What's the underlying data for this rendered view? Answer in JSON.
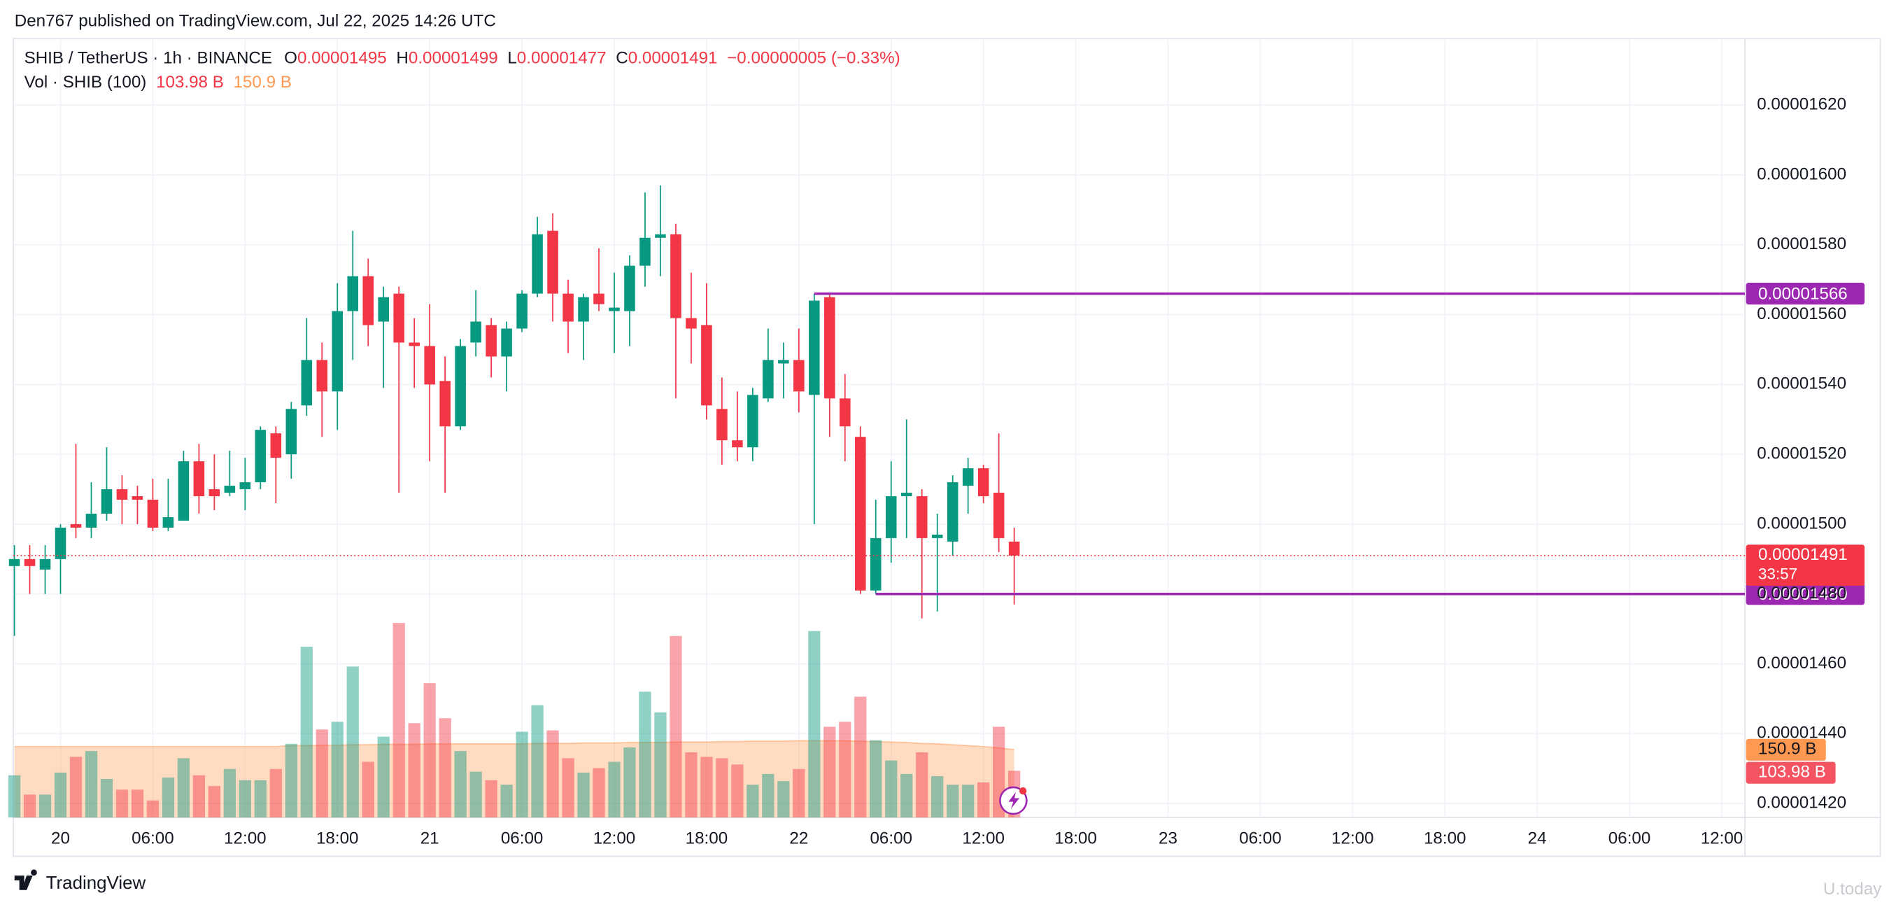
{
  "chart_data": {
    "type": "candlestick",
    "published": "Den767 published on TradingView.com, Jul 22, 2025 14:26 UTC",
    "legend": {
      "symbol": "SHIB / TetherUS · 1h · BINANCE",
      "ohlc_labels": [
        "O",
        "H",
        "L",
        "C"
      ],
      "change": "−0.00000005 (−0.33%)",
      "volume_title": "Vol · SHIB (100)",
      "volume_value": "103.98 B",
      "volume_ma_value": "150.9 B"
    },
    "countdown": "33:57",
    "brand": "TradingView",
    "watermark": "U.today",
    "up_color": "#089981",
    "down_color": "#f23645",
    "volume_ma_color": "#ff9850",
    "grid": true,
    "x": [
      -3,
      -2,
      -1,
      0,
      1,
      2,
      3,
      4,
      5,
      6,
      7,
      8,
      9,
      10,
      11,
      12,
      13,
      14,
      15,
      16,
      17,
      18,
      19,
      20,
      21,
      22,
      23,
      24,
      25,
      26,
      27,
      28,
      29,
      30,
      31,
      32,
      33,
      34,
      35,
      36,
      37,
      38,
      39,
      40,
      41,
      42,
      43,
      44,
      45,
      46,
      47,
      48,
      49,
      50,
      51,
      52,
      53,
      54,
      55,
      56,
      57,
      58,
      59,
      60,
      61,
      62
    ],
    "open": [
      1.488e-05,
      1.49e-05,
      1.487e-05,
      1.49e-05,
      1.5e-05,
      1.499e-05,
      1.503e-05,
      1.51e-05,
      1.508e-05,
      1.507e-05,
      1.499e-05,
      1.501e-05,
      1.518e-05,
      1.51e-05,
      1.509e-05,
      1.51e-05,
      1.512e-05,
      1.526e-05,
      1.52e-05,
      1.534e-05,
      1.547e-05,
      1.538e-05,
      1.561e-05,
      1.571e-05,
      1.558e-05,
      1.566e-05,
      1.552e-05,
      1.551e-05,
      1.541e-05,
      1.528e-05,
      1.552e-05,
      1.557e-05,
      1.548e-05,
      1.556e-05,
      1.566e-05,
      1.584e-05,
      1.566e-05,
      1.558e-05,
      1.566e-05,
      1.561e-05,
      1.561e-05,
      1.574e-05,
      1.582e-05,
      1.583e-05,
      1.559e-05,
      1.557e-05,
      1.533e-05,
      1.524e-05,
      1.522e-05,
      1.536e-05,
      1.546e-05,
      1.547e-05,
      1.537e-05,
      1.565e-05,
      1.536e-05,
      1.525e-05,
      1.481e-05,
      1.496e-05,
      1.508e-05,
      1.508e-05,
      1.496e-05,
      1.495e-05,
      1.511e-05,
      1.516e-05,
      1.509e-05,
      1.495e-05
    ],
    "high": [
      1.494e-05,
      1.494e-05,
      1.494e-05,
      1.5e-05,
      1.523e-05,
      1.512e-05,
      1.522e-05,
      1.514e-05,
      1.511e-05,
      1.513e-05,
      1.513e-05,
      1.521e-05,
      1.523e-05,
      1.52e-05,
      1.521e-05,
      1.519e-05,
      1.528e-05,
      1.528e-05,
      1.535e-05,
      1.559e-05,
      1.552e-05,
      1.569e-05,
      1.584e-05,
      1.576e-05,
      1.568e-05,
      1.568e-05,
      1.559e-05,
      1.563e-05,
      1.548e-05,
      1.553e-05,
      1.567e-05,
      1.559e-05,
      1.558e-05,
      1.567e-05,
      1.588e-05,
      1.589e-05,
      1.57e-05,
      1.566e-05,
      1.579e-05,
      1.572e-05,
      1.577e-05,
      1.595e-05,
      1.597e-05,
      1.586e-05,
      1.572e-05,
      1.569e-05,
      1.542e-05,
      1.538e-05,
      1.539e-05,
      1.556e-05,
      1.552e-05,
      1.556e-05,
      1.566e-05,
      1.566e-05,
      1.543e-05,
      1.528e-05,
      1.507e-05,
      1.518e-05,
      1.53e-05,
      1.51e-05,
      1.503e-05,
      1.514e-05,
      1.519e-05,
      1.517e-05,
      1.526e-05,
      1.499e-05
    ],
    "low": [
      1.468e-05,
      1.48e-05,
      1.48e-05,
      1.48e-05,
      1.496e-05,
      1.496e-05,
      1.501e-05,
      1.5e-05,
      1.5e-05,
      1.498e-05,
      1.498e-05,
      1.501e-05,
      1.503e-05,
      1.504e-05,
      1.508e-05,
      1.504e-05,
      1.51e-05,
      1.506e-05,
      1.513e-05,
      1.531e-05,
      1.525e-05,
      1.527e-05,
      1.547e-05,
      1.551e-05,
      1.539e-05,
      1.509e-05,
      1.539e-05,
      1.518e-05,
      1.509e-05,
      1.527e-05,
      1.548e-05,
      1.542e-05,
      1.538e-05,
      1.555e-05,
      1.565e-05,
      1.558e-05,
      1.549e-05,
      1.547e-05,
      1.561e-05,
      1.549e-05,
      1.551e-05,
      1.568e-05,
      1.571e-05,
      1.536e-05,
      1.546e-05,
      1.53e-05,
      1.517e-05,
      1.518e-05,
      1.518e-05,
      1.535e-05,
      1.536e-05,
      1.532e-05,
      1.5e-05,
      1.525e-05,
      1.518e-05,
      1.48e-05,
      1.48e-05,
      1.489e-05,
      1.496e-05,
      1.473e-05,
      1.475e-05,
      1.491e-05,
      1.503e-05,
      1.506e-05,
      1.492e-05,
      1.477e-05
    ],
    "close": [
      1.49e-05,
      1.488e-05,
      1.49e-05,
      1.499e-05,
      1.499e-05,
      1.503e-05,
      1.51e-05,
      1.507e-05,
      1.507e-05,
      1.499e-05,
      1.502e-05,
      1.518e-05,
      1.508e-05,
      1.508e-05,
      1.511e-05,
      1.512e-05,
      1.527e-05,
      1.519e-05,
      1.533e-05,
      1.547e-05,
      1.538e-05,
      1.561e-05,
      1.571e-05,
      1.557e-05,
      1.565e-05,
      1.552e-05,
      1.551e-05,
      1.54e-05,
      1.528e-05,
      1.551e-05,
      1.558e-05,
      1.548e-05,
      1.556e-05,
      1.566e-05,
      1.583e-05,
      1.566e-05,
      1.558e-05,
      1.565e-05,
      1.563e-05,
      1.562e-05,
      1.574e-05,
      1.582e-05,
      1.583e-05,
      1.559e-05,
      1.556e-05,
      1.534e-05,
      1.524e-05,
      1.522e-05,
      1.537e-05,
      1.547e-05,
      1.547e-05,
      1.538e-05,
      1.564e-05,
      1.536e-05,
      1.528e-05,
      1.481e-05,
      1.496e-05,
      1.508e-05,
      1.509e-05,
      1.496e-05,
      1.497e-05,
      1.512e-05,
      1.516e-05,
      1.508e-05,
      1.496e-05,
      1.491e-05
    ],
    "volume": [
      94,
      51,
      51,
      100,
      135,
      148,
      86,
      62,
      62,
      38,
      89,
      132,
      94,
      70,
      108,
      83,
      83,
      108,
      164,
      380,
      196,
      213,
      336,
      124,
      180,
      433,
      210,
      299,
      221,
      148,
      102,
      83,
      73,
      191,
      250,
      194,
      132,
      100,
      110,
      124,
      156,
      280,
      234,
      404,
      145,
      135,
      132,
      118,
      73,
      97,
      81,
      108,
      415,
      202,
      213,
      269,
      172,
      127,
      97,
      145,
      92,
      73,
      73,
      78,
      202,
      103.98
    ],
    "volume_ma": [
      158,
      158,
      158,
      158,
      158,
      158,
      158,
      158,
      158,
      158,
      158,
      158,
      158,
      158,
      158,
      158,
      158,
      158,
      160,
      160,
      161,
      161,
      162,
      162,
      163,
      163,
      163,
      164,
      164,
      164,
      164,
      164,
      164,
      164,
      165,
      165,
      165,
      166,
      166,
      166,
      167,
      167,
      167,
      168,
      168,
      168,
      169,
      169,
      170,
      170,
      170,
      171,
      171,
      171,
      171,
      170,
      169,
      168,
      167,
      165,
      164,
      162,
      160,
      158,
      155,
      150.9
    ],
    "hlines": [
      {
        "value": 1.566e-05,
        "label": "0.00001566",
        "start": 49,
        "color": "#9c27b0"
      },
      {
        "value": 1.48e-05,
        "label": "0.00001480",
        "start": 53,
        "color": "#9c27b0"
      }
    ],
    "xlim": [
      -3.07,
      109.5
    ],
    "xticks": [
      {
        "value": 0,
        "label": "20"
      },
      {
        "value": 6,
        "label": "06:00"
      },
      {
        "value": 12,
        "label": "12:00"
      },
      {
        "value": 18,
        "label": "18:00"
      },
      {
        "value": 24,
        "label": "21"
      },
      {
        "value": 30,
        "label": "06:00"
      },
      {
        "value": 36,
        "label": "12:00"
      },
      {
        "value": 42,
        "label": "18:00"
      },
      {
        "value": 48,
        "label": "22"
      },
      {
        "value": 54,
        "label": "06:00"
      },
      {
        "value": 60,
        "label": "12:00"
      },
      {
        "value": 66,
        "label": "18:00"
      },
      {
        "value": 72,
        "label": "23"
      },
      {
        "value": 78,
        "label": "06:00"
      },
      {
        "value": 84,
        "label": "12:00"
      },
      {
        "value": 90,
        "label": "18:00"
      },
      {
        "value": 96,
        "label": "24"
      },
      {
        "value": 102,
        "label": "06:00"
      },
      {
        "value": 108,
        "label": "12:00"
      }
    ],
    "ylim": [
      1.416e-05,
      1.639e-05
    ],
    "yticks": [
      {
        "value": 1.42e-05,
        "label": "0.00001420"
      },
      {
        "value": 1.44e-05,
        "label": "0.00001440"
      },
      {
        "value": 1.46e-05,
        "label": "0.00001460"
      },
      {
        "value": 1.48e-05,
        "label": "0.00001480"
      },
      {
        "value": 1.5e-05,
        "label": "0.00001500"
      },
      {
        "value": 1.52e-05,
        "label": "0.00001520"
      },
      {
        "value": 1.54e-05,
        "label": "0.00001540"
      },
      {
        "value": 1.56e-05,
        "label": "0.00001560"
      },
      {
        "value": 1.58e-05,
        "label": "0.00001580"
      },
      {
        "value": 1.6e-05,
        "label": "0.00001600"
      },
      {
        "value": 1.62e-05,
        "label": "0.00001620"
      }
    ]
  }
}
